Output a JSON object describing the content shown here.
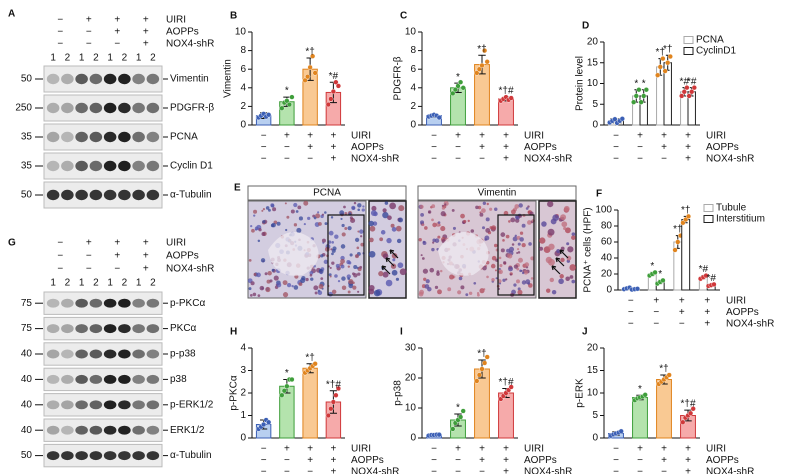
{
  "conditions": {
    "labels": [
      "UIRI",
      "AOPPs",
      "NOX4-shR"
    ],
    "signs": [
      [
        "−",
        "+",
        "+",
        "+"
      ],
      [
        "−",
        "−",
        "+",
        "+"
      ],
      [
        "−",
        "−",
        "−",
        "+"
      ]
    ]
  },
  "blots": [
    {
      "label": "A",
      "lanes": [
        "1",
        "2"
      ],
      "rows": [
        {
          "marker": "50",
          "name": "Vimentin"
        },
        {
          "marker": "250",
          "name": "PDGFR-β"
        },
        {
          "marker": "35",
          "name": "PCNA"
        },
        {
          "marker": "35",
          "name": "Cyclin D1"
        },
        {
          "marker": "50",
          "name": "α-Tubulin"
        }
      ]
    },
    {
      "label": "G",
      "lanes": [
        "1",
        "2"
      ],
      "rows": [
        {
          "marker": "75",
          "name": "p-PKCα"
        },
        {
          "marker": "75",
          "name": "PKCα"
        },
        {
          "marker": "40",
          "name": "p-p38"
        },
        {
          "marker": "40",
          "name": "p38"
        },
        {
          "marker": "40",
          "name": "p-ERK1/2"
        },
        {
          "marker": "40",
          "name": "ERK1/2"
        },
        {
          "marker": "50",
          "name": "α-Tubulin"
        }
      ]
    }
  ],
  "micrographs": {
    "label": "E",
    "panels": [
      "PCNA",
      "Vimentin"
    ]
  },
  "chart_data": [
    {
      "type": "bar",
      "label": "B",
      "ylabel": "Vimentin",
      "ylim": [
        0,
        10
      ],
      "yticks": [
        0,
        2,
        4,
        6,
        8,
        10
      ],
      "series": [
        {
          "colors": [
            "#b8cff0",
            "#b4e3ad",
            "#f9c993",
            "#f6aaaa"
          ],
          "edge_colors": [
            "#3b5fb5",
            "#3e9e3a",
            "#e0841e",
            "#d0383a"
          ],
          "dot_colors": [
            "#3b5fb5",
            "#3e9e3a",
            "#e0841e",
            "#d0383a"
          ],
          "values": [
            1,
            2.5,
            6,
            3.5
          ],
          "errors": [
            0.3,
            0.5,
            1.2,
            1.1
          ],
          "points": [
            [
              0.8,
              1.0,
              1.2,
              0.9,
              1.1
            ],
            [
              1.8,
              2.4,
              2.6,
              2.2,
              3.0
            ],
            [
              4.8,
              5.2,
              6.2,
              7.4,
              5.6
            ],
            [
              2.2,
              2.8,
              3.6,
              4.6,
              4.2
            ]
          ],
          "annotations": [
            null,
            "*",
            "*†",
            "*#"
          ]
        }
      ]
    },
    {
      "type": "bar",
      "label": "C",
      "ylabel": "PDGFR-β",
      "ylim": [
        0,
        10
      ],
      "yticks": [
        0,
        2,
        4,
        6,
        8,
        10
      ],
      "series": [
        {
          "colors": [
            "#b8cff0",
            "#b4e3ad",
            "#f9c993",
            "#f6aaaa"
          ],
          "edge_colors": [
            "#3b5fb5",
            "#3e9e3a",
            "#e0841e",
            "#d0383a"
          ],
          "dot_colors": [
            "#3b5fb5",
            "#3e9e3a",
            "#e0841e",
            "#d0383a"
          ],
          "values": [
            1,
            4,
            6.5,
            2.8
          ],
          "errors": [
            0.15,
            0.5,
            1.0,
            0.2
          ],
          "points": [
            [
              0.9,
              1.0,
              1.1,
              1.0,
              0.8
            ],
            [
              3.4,
              3.8,
              4.2,
              4.6,
              4.0
            ],
            [
              5.6,
              6.0,
              6.4,
              8.0,
              6.8
            ],
            [
              2.6,
              2.8,
              3.0,
              2.7,
              2.9
            ]
          ],
          "annotations": [
            null,
            "*",
            "*†",
            "*†#"
          ]
        }
      ]
    },
    {
      "type": "bar",
      "label": "D",
      "ylabel": "Protein level",
      "ylim": [
        0,
        20
      ],
      "yticks": [
        0,
        5,
        10,
        15,
        20
      ],
      "series": [
        {
          "name": "PCNA",
          "colors": [
            "#ffffff",
            "#ffffff",
            "#ffffff",
            "#ffffff"
          ],
          "edge_colors": [
            "#aaaaaa",
            "#aaaaaa",
            "#aaaaaa",
            "#aaaaaa"
          ],
          "dot_colors": [
            "#3b5fb5",
            "#3e9e3a",
            "#e0841e",
            "#d0383a"
          ],
          "values": [
            1,
            7,
            14,
            8
          ],
          "errors": [
            0.5,
            1.5,
            2,
            1
          ],
          "points": [
            [
              0.6,
              1.0,
              1.4
            ],
            [
              5.5,
              7,
              8.5
            ],
            [
              12,
              14,
              16
            ],
            [
              7,
              8,
              9
            ]
          ],
          "annotations": [
            null,
            "*",
            "*†",
            "*#"
          ]
        },
        {
          "name": "CyclinD1",
          "colors": [
            "#ffffff",
            "#ffffff",
            "#ffffff",
            "#ffffff"
          ],
          "edge_colors": [
            "#222222",
            "#222222",
            "#222222",
            "#222222"
          ],
          "dot_colors": [
            "#3b5fb5",
            "#3e9e3a",
            "#e0841e",
            "#d0383a"
          ],
          "values": [
            1,
            7,
            15,
            8
          ],
          "errors": [
            0.5,
            1.5,
            1.8,
            1
          ],
          "points": [
            [
              0.5,
              1,
              1.5
            ],
            [
              5.5,
              7,
              8.5
            ],
            [
              13,
              15,
              16.5
            ],
            [
              7,
              8,
              9
            ]
          ],
          "annotations": [
            null,
            "*",
            "*†",
            "*#"
          ]
        }
      ]
    },
    {
      "type": "bar",
      "label": "F",
      "ylabel": "PCNA⁺ cells (HPF)",
      "ylim": [
        0,
        100
      ],
      "yticks": [
        0,
        20,
        40,
        60,
        80,
        100
      ],
      "series": [
        {
          "name": "Tubule",
          "colors": [
            "#ffffff",
            "#ffffff",
            "#ffffff",
            "#ffffff"
          ],
          "edge_colors": [
            "#aaaaaa",
            "#aaaaaa",
            "#aaaaaa",
            "#aaaaaa"
          ],
          "dot_colors": [
            "#3b5fb5",
            "#3e9e3a",
            "#e0841e",
            "#d0383a"
          ],
          "values": [
            2,
            20,
            60,
            16
          ],
          "errors": [
            1,
            2,
            8,
            2
          ],
          "points": [
            [
              1,
              2,
              3
            ],
            [
              18,
              20,
              22
            ],
            [
              50,
              60,
              68
            ],
            [
              14,
              16,
              18
            ]
          ],
          "annotations": [
            null,
            "*",
            "*†",
            "*#"
          ]
        },
        {
          "name": "Interstitium",
          "colors": [
            "#ffffff",
            "#ffffff",
            "#ffffff",
            "#ffffff"
          ],
          "edge_colors": [
            "#222222",
            "#222222",
            "#222222",
            "#222222"
          ],
          "dot_colors": [
            "#3b5fb5",
            "#3e9e3a",
            "#e0841e",
            "#d0383a"
          ],
          "values": [
            1,
            10,
            88,
            6
          ],
          "errors": [
            0.5,
            2,
            4,
            1
          ],
          "points": [
            [
              0.5,
              1,
              1.5
            ],
            [
              8,
              10,
              12
            ],
            [
              84,
              88,
              92
            ],
            [
              5,
              6,
              7
            ]
          ],
          "annotations": [
            null,
            "*",
            "*†",
            "*#"
          ]
        }
      ]
    },
    {
      "type": "bar",
      "label": "H",
      "ylabel": "p-PKCα",
      "ylim": [
        0,
        4
      ],
      "yticks": [
        0,
        1,
        2,
        3,
        4
      ],
      "series": [
        {
          "colors": [
            "#b8cff0",
            "#b4e3ad",
            "#f9c993",
            "#f6aaaa"
          ],
          "edge_colors": [
            "#3b5fb5",
            "#3e9e3a",
            "#e0841e",
            "#d0383a"
          ],
          "dot_colors": [
            "#3b5fb5",
            "#3e9e3a",
            "#e0841e",
            "#d0383a"
          ],
          "values": [
            0.6,
            2.3,
            3.1,
            1.6
          ],
          "errors": [
            0.2,
            0.3,
            0.2,
            0.5
          ],
          "points": [
            [
              0.4,
              0.5,
              0.6,
              0.8,
              0.7
            ],
            [
              1.9,
              2.1,
              2.3,
              2.6,
              2.6
            ],
            [
              2.9,
              3.0,
              3.1,
              3.2,
              3.3
            ],
            [
              1.0,
              1.3,
              1.6,
              1.9,
              2.2
            ]
          ],
          "annotations": [
            null,
            "*",
            "*†",
            "*†#"
          ]
        }
      ]
    },
    {
      "type": "bar",
      "label": "I",
      "ylabel": "p-p38",
      "ylim": [
        0,
        30
      ],
      "yticks": [
        0,
        10,
        20,
        30
      ],
      "series": [
        {
          "colors": [
            "#b8cff0",
            "#b4e3ad",
            "#f9c993",
            "#f6aaaa"
          ],
          "edge_colors": [
            "#3b5fb5",
            "#3e9e3a",
            "#e0841e",
            "#d0383a"
          ],
          "dot_colors": [
            "#3b5fb5",
            "#3e9e3a",
            "#e0841e",
            "#d0383a"
          ],
          "values": [
            1,
            6,
            23,
            15
          ],
          "errors": [
            0.2,
            2,
            3,
            1.5
          ],
          "points": [
            [
              0.8,
              1,
              1,
              1.1,
              1.1
            ],
            [
              3,
              5,
              6,
              7,
              9
            ],
            [
              19,
              21,
              23,
              25,
              27
            ],
            [
              13,
              14,
              15,
              16,
              17
            ]
          ],
          "annotations": [
            null,
            "*",
            "*†",
            "*†#"
          ]
        }
      ]
    },
    {
      "type": "bar",
      "label": "J",
      "ylabel": "p-ERK",
      "ylim": [
        0,
        20
      ],
      "yticks": [
        0,
        5,
        10,
        15,
        20
      ],
      "series": [
        {
          "colors": [
            "#b8cff0",
            "#b4e3ad",
            "#f9c993",
            "#f6aaaa"
          ],
          "edge_colors": [
            "#3b5fb5",
            "#3e9e3a",
            "#e0841e",
            "#d0383a"
          ],
          "dot_colors": [
            "#3b5fb5",
            "#3e9e3a",
            "#e0841e",
            "#d0383a"
          ],
          "values": [
            1,
            9,
            13,
            5
          ],
          "errors": [
            0.4,
            0.5,
            1,
            1.2
          ],
          "points": [
            [
              0.5,
              0.8,
              1,
              1.2,
              1.5
            ],
            [
              8.4,
              8.8,
              9,
              9.2,
              9.6
            ],
            [
              12,
              12.5,
              13,
              13.5,
              14
            ],
            [
              3.5,
              4.5,
              5,
              5.5,
              6.5
            ]
          ],
          "annotations": [
            null,
            "*",
            "*†",
            "*†#"
          ]
        }
      ]
    }
  ]
}
